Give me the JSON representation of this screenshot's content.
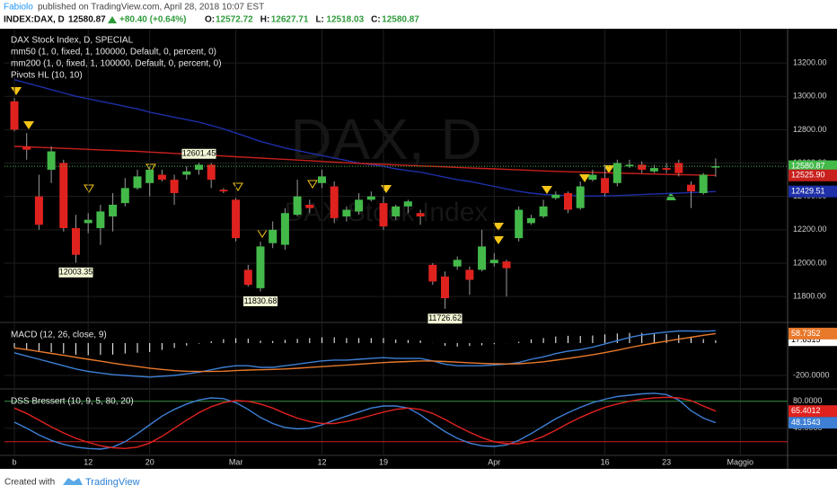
{
  "header": {
    "author": "Fabiolo",
    "published": "published on TradingView.com, April 28, 2018 10:07 EST",
    "symbol": "INDEX:DAX, D",
    "last": "12580.87",
    "change": "+80.40 (+0.64%)",
    "ohlc": [
      {
        "key": "O:",
        "value": "12572.72"
      },
      {
        "key": "H:",
        "value": "12627.71"
      },
      {
        "key": "L:",
        "value": "12518.03"
      },
      {
        "key": "C:",
        "value": "12580.87"
      }
    ]
  },
  "footer": {
    "text": "Created with",
    "brand": "TradingView"
  },
  "chart_data": [
    {
      "type": "candlestick",
      "title": "DAX Stock Index, D, SPECIAL",
      "watermark": "DAX, D",
      "watermark_sub": "DAX Stock Index",
      "indicators": [
        "Pivots HL (10, 10)"
      ],
      "up_color": "#43b94a",
      "down_color": "#e0221f",
      "grid": true,
      "categories": [
        "b",
        null,
        null,
        null,
        null,
        null,
        "12",
        null,
        null,
        null,
        null,
        "20",
        null,
        null,
        null,
        null,
        null,
        null,
        "Mar",
        null,
        null,
        null,
        null,
        null,
        null,
        "12",
        null,
        null,
        null,
        null,
        "19",
        null,
        null,
        null,
        null,
        null,
        null,
        null,
        null,
        "Apr",
        null,
        null,
        null,
        null,
        null,
        null,
        null,
        null,
        "16",
        null,
        null,
        null,
        null,
        "23",
        null,
        null,
        null,
        null,
        null,
        "Maggio",
        null
      ],
      "open": [
        12970,
        12700,
        12400,
        12560,
        12600,
        12210,
        12240,
        12210,
        12280,
        12360,
        12450,
        12480,
        12530,
        12500,
        12530,
        12560,
        12590,
        12440,
        12380,
        11960,
        11850,
        12120,
        12110,
        12290,
        12350,
        12480,
        12460,
        12280,
        12310,
        12380,
        12360,
        12280,
        12340,
        12300,
        11990,
        11920,
        11980,
        11960,
        11960,
        12000,
        12010,
        12150,
        12240,
        12280,
        12390,
        12420,
        12330,
        12500,
        12510,
        12480,
        12580,
        12590,
        12550,
        12570,
        12600,
        12470,
        12420,
        12572.72,
        null,
        null,
        null
      ],
      "high": [
        12990,
        12780,
        12530,
        12700,
        12620,
        12290,
        12300,
        12350,
        12420,
        12510,
        12560,
        12580,
        12560,
        12530,
        12580,
        12601.45,
        12600,
        12450,
        12390,
        11990,
        12130,
        12250,
        12330,
        12500,
        12380,
        12560,
        12490,
        12340,
        12420,
        12430,
        12400,
        12350,
        12380,
        12320,
        12000,
        11950,
        12040,
        11980,
        12200,
        12060,
        12020,
        12340,
        12290,
        12380,
        12430,
        12430,
        12490,
        12560,
        12590,
        12620,
        12620,
        12610,
        12590,
        12600,
        12620,
        12490,
        12540,
        12627.71,
        null,
        null,
        null
      ],
      "low": [
        12790,
        12620,
        12200,
        12480,
        12190,
        12003.35,
        12180,
        12110,
        12190,
        12340,
        12440,
        12400,
        12490,
        12350,
        12500,
        12530,
        12450,
        12420,
        12130,
        11860,
        11830.68,
        12090,
        12080,
        12280,
        12300,
        12450,
        12240,
        12250,
        12290,
        12370,
        12200,
        12260,
        12300,
        12230,
        11870,
        11726.62,
        11960,
        11810,
        11950,
        11980,
        11800,
        12130,
        12230,
        12270,
        12380,
        12300,
        12320,
        12490,
        12400,
        12460,
        12570,
        12540,
        12540,
        12540,
        12520,
        12330,
        12410,
        12518.03,
        null,
        null,
        null
      ],
      "close": [
        12800,
        12680,
        12230,
        12670,
        12210,
        12050,
        12260,
        12310,
        12350,
        12450,
        12520,
        12560,
        12500,
        12420,
        12550,
        12590,
        12500,
        12430,
        12150,
        11870,
        12100,
        12200,
        12300,
        12400,
        12330,
        12520,
        12270,
        12320,
        12380,
        12400,
        12220,
        12340,
        12370,
        12280,
        11890,
        11790,
        12020,
        11900,
        12100,
        12020,
        11970,
        12320,
        12270,
        12340,
        12410,
        12320,
        12460,
        12530,
        12420,
        12600,
        12590,
        12560,
        12570,
        12560,
        12540,
        12430,
        12530,
        12580.87,
        null,
        null,
        null
      ],
      "series": [
        {
          "name": "mm50 (1, 0, fixed, 1, 100000, Default, 0, percent, 0)",
          "color": "#1e2fa8",
          "show_last": true,
          "values": [
            13100,
            13080,
            13060,
            13040,
            13020,
            13000,
            12985,
            12970,
            12955,
            12940,
            12925,
            12905,
            12890,
            12875,
            12860,
            12845,
            12825,
            12805,
            12780,
            12755,
            12730,
            12710,
            12690,
            12675,
            12660,
            12645,
            12630,
            12615,
            12600,
            12590,
            12580,
            12565,
            12555,
            12545,
            12530,
            12515,
            12500,
            12490,
            12475,
            12460,
            12445,
            12430,
            12420,
            12412,
            12408,
            12405,
            12403,
            12402,
            12403,
            12405,
            12408,
            12411,
            12414,
            12417,
            12420,
            12423,
            12426,
            12429.51,
            null,
            null,
            null
          ]
        },
        {
          "name": "mm200 (1, 0, fixed, 1, 100000, Default, 0, percent, 0)",
          "color": "#c8201c",
          "show_last": true,
          "last_label": "12525.90",
          "values": [
            12700,
            12697,
            12694,
            12691,
            12688,
            12685,
            12682,
            12679,
            12676,
            12673,
            12670,
            12666,
            12662,
            12658,
            12654,
            12650,
            12646,
            12642,
            12638,
            12634,
            12630,
            12626,
            12622,
            12618,
            12614,
            12610,
            12606,
            12602,
            12598,
            12595,
            12592,
            12589,
            12586,
            12583,
            12580,
            12577,
            12574,
            12571,
            12568,
            12565,
            12562,
            12559,
            12556,
            12553,
            12550,
            12548,
            12546,
            12544,
            12542,
            12540,
            12538,
            12536,
            12534,
            12532,
            12530,
            12529,
            12527,
            12525.9,
            null,
            null,
            null
          ]
        }
      ],
      "annotations": [
        {
          "x": 5,
          "y": 12003.35
        },
        {
          "x": 15,
          "y": 12601.45
        },
        {
          "x": 20,
          "y": 11830.68
        },
        {
          "x": 35,
          "y": 11726.62
        }
      ],
      "ylim": [
        11650,
        13405
      ],
      "yticks": [
        {
          "value": 11800,
          "label": "11800.00"
        },
        {
          "value": 12000,
          "label": "12000.00"
        },
        {
          "value": 12200,
          "label": "12200.00"
        },
        {
          "value": 12400,
          "label": "12400.00"
        },
        {
          "value": 12600,
          "label": "12600.00"
        },
        {
          "value": 12800,
          "label": "12800.00"
        },
        {
          "value": 13000,
          "label": "13000.00"
        },
        {
          "value": 13200,
          "label": "13200.00"
        }
      ]
    },
    {
      "type": "line",
      "title": "MACD (12, 26, close, 9)",
      "grid": true,
      "series": [
        {
          "type": "bar",
          "color": "#ffffff",
          "show_last": true,
          "values": [
            -30,
            -40,
            -48,
            -56,
            -64,
            -72,
            -75,
            -73,
            -71,
            -65,
            -60,
            -55,
            -42,
            -30,
            -16,
            -4,
            11,
            24,
            30,
            27,
            15,
            13,
            20,
            26,
            31,
            36,
            36,
            31,
            31,
            31,
            31,
            22,
            19,
            16,
            1,
            -16,
            -22,
            -18,
            -14,
            -7,
            -1,
            8,
            23,
            31,
            41,
            45,
            44,
            47,
            54,
            59,
            63,
            63,
            60,
            56,
            51,
            39,
            25,
            17.8315,
            null,
            null,
            null
          ]
        },
        {
          "color": "#3d7fd4",
          "values": [
            -60,
            -80,
            -100,
            -120,
            -140,
            -160,
            -175,
            -185,
            -195,
            -200,
            -205,
            -210,
            -205,
            -200,
            -190,
            -180,
            -165,
            -150,
            -140,
            -140,
            -150,
            -150,
            -140,
            -130,
            -120,
            -110,
            -105,
            -105,
            -100,
            -95,
            -90,
            -95,
            -95,
            -95,
            -110,
            -130,
            -140,
            -140,
            -140,
            -135,
            -130,
            -120,
            -100,
            -85,
            -65,
            -50,
            -40,
            -25,
            -5,
            15,
            35,
            50,
            60,
            68,
            75,
            75,
            73,
            76.5672,
            null,
            null,
            null
          ]
        },
        {
          "color": "#e8792b",
          "show_last": true,
          "values": [
            -30,
            -40,
            -52,
            -64,
            -76,
            -88,
            -100,
            -112,
            -124,
            -135,
            -145,
            -155,
            -163,
            -170,
            -174,
            -176,
            -176,
            -174,
            -170,
            -167,
            -165,
            -163,
            -160,
            -156,
            -151,
            -146,
            -141,
            -136,
            -131,
            -126,
            -121,
            -117,
            -114,
            -111,
            -111,
            -114,
            -118,
            -122,
            -126,
            -128,
            -129,
            -128,
            -123,
            -116,
            -106,
            -95,
            -84,
            -72,
            -59,
            -44,
            -28,
            -13,
            0,
            12,
            24,
            36,
            48,
            58.7352,
            null,
            null,
            null
          ]
        }
      ],
      "ylim": [
        -278,
        122
      ],
      "yticks": [
        {
          "value": -200,
          "label": "-200.0000"
        }
      ]
    },
    {
      "type": "line",
      "title": "DSS Bressert (10, 9, 5, 80, 20)",
      "grid": true,
      "levels": [
        {
          "value": 80,
          "color": "#2e8b3a"
        },
        {
          "value": 20,
          "color": "#c8201c"
        }
      ],
      "series": [
        {
          "color": "#3d7fd4",
          "show_last": true,
          "values": [
            49,
            40,
            30,
            22,
            16,
            12,
            10,
            9,
            12,
            20,
            32,
            45,
            58,
            68,
            76,
            82,
            85,
            84,
            78,
            68,
            56,
            47,
            41,
            39,
            40,
            45,
            52,
            58,
            64,
            70,
            73,
            73,
            70,
            60,
            47,
            35,
            25,
            18,
            14,
            13,
            15,
            22,
            32,
            43,
            54,
            63,
            71,
            78,
            83,
            87,
            89,
            91,
            92,
            90,
            82,
            66,
            55,
            48.1543,
            null,
            null,
            null
          ]
        },
        {
          "color": "#e0221f",
          "show_last": true,
          "values": [
            70,
            62,
            52,
            42,
            33,
            25,
            19,
            14,
            11,
            10,
            12,
            18,
            28,
            40,
            52,
            63,
            72,
            78,
            81,
            80,
            76,
            70,
            62,
            55,
            50,
            47,
            47,
            50,
            54,
            59,
            64,
            68,
            70,
            68,
            62,
            53,
            43,
            34,
            26,
            20,
            17,
            17,
            21,
            28,
            37,
            47,
            56,
            64,
            71,
            76,
            80,
            83,
            85,
            86,
            85,
            81,
            73,
            65.4012,
            null,
            null,
            null
          ]
        }
      ],
      "ylim": [
        1,
        97
      ],
      "yticks": [
        {
          "value": 40,
          "label": "40.0000"
        },
        {
          "value": 80,
          "label": "80.0000"
        }
      ]
    }
  ]
}
